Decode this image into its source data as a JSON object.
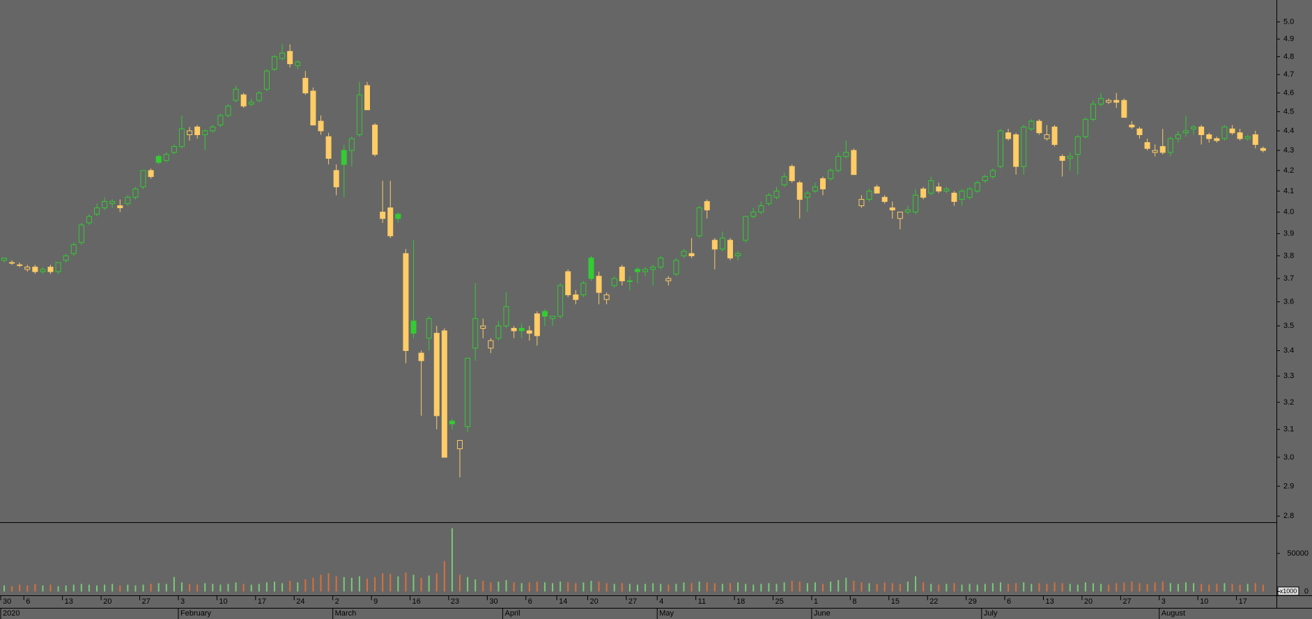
{
  "chart_data": {
    "type": "candlestick",
    "log_scale": true,
    "up_color": "#33cc33",
    "down_color": "#ffcc66",
    "vol_up_color": "#77cc77",
    "vol_down_color": "#d9703c",
    "ylim": [
      2.78,
      5.13
    ],
    "yticks": [
      {
        "value": 2.8,
        "label": "2.8"
      },
      2.9,
      {
        "value": 3.0,
        "label": "3.0"
      },
      3.1,
      3.2,
      3.3,
      3.4,
      3.5,
      3.6,
      3.7,
      3.8,
      3.9,
      {
        "value": 4.0,
        "label": "4.0"
      },
      4.1,
      4.2,
      4.3,
      4.4,
      4.5,
      4.6,
      4.7,
      4.8,
      4.9,
      {
        "value": 5.0,
        "label": "5.0"
      }
    ],
    "vol_ylim": [
      -5000,
      90000
    ],
    "vol_ticks": [
      0,
      50000
    ],
    "volume_unit_label": "x1000",
    "xticks": [
      {
        "value": 0,
        "label": "30"
      },
      {
        "value": 3,
        "label": "6"
      },
      {
        "value": 8,
        "label": "13"
      },
      {
        "value": 13,
        "label": "20"
      },
      {
        "value": 18,
        "label": "27"
      },
      {
        "value": 23,
        "label": "3"
      },
      {
        "value": 28,
        "label": "10"
      },
      {
        "value": 33,
        "label": "17"
      },
      {
        "value": 38,
        "label": "24"
      },
      {
        "value": 43,
        "label": "2"
      },
      {
        "value": 48,
        "label": "9"
      },
      {
        "value": 53,
        "label": "16"
      },
      {
        "value": 58,
        "label": "23"
      },
      {
        "value": 63,
        "label": "30"
      },
      {
        "value": 68,
        "label": "6"
      },
      {
        "value": 72,
        "label": "14"
      },
      {
        "value": 76,
        "label": "20"
      },
      {
        "value": 81,
        "label": "27"
      },
      {
        "value": 85,
        "label": "4"
      },
      {
        "value": 90,
        "label": "11"
      },
      {
        "value": 95,
        "label": "18"
      },
      {
        "value": 100,
        "label": "25"
      },
      {
        "value": 105,
        "label": "1"
      },
      {
        "value": 110,
        "label": "8"
      },
      {
        "value": 115,
        "label": "15"
      },
      {
        "value": 120,
        "label": "22"
      },
      {
        "value": 125,
        "label": "29"
      },
      {
        "value": 130,
        "label": "6"
      },
      {
        "value": 135,
        "label": "13"
      },
      {
        "value": 140,
        "label": "20"
      },
      {
        "value": 145,
        "label": "27"
      },
      {
        "value": 150,
        "label": "3"
      },
      {
        "value": 155,
        "label": "10"
      },
      {
        "value": 160,
        "label": "17"
      }
    ],
    "month_ticks": [
      {
        "value": 0,
        "label": "2020"
      },
      {
        "value": 23,
        "label": "February"
      },
      {
        "value": 43,
        "label": "March"
      },
      {
        "value": 65,
        "label": "April"
      },
      {
        "value": 85,
        "label": "May"
      },
      {
        "value": 105,
        "label": "June"
      },
      {
        "value": 127,
        "label": "July"
      },
      {
        "value": 150,
        "label": "August"
      }
    ],
    "candles": [
      [
        3.78,
        3.79,
        3.77,
        3.79
      ],
      [
        3.77,
        3.78,
        3.76,
        3.77
      ],
      [
        3.76,
        3.77,
        3.75,
        3.76
      ],
      [
        3.74,
        3.76,
        3.73,
        3.75
      ],
      [
        3.75,
        3.76,
        3.72,
        3.73
      ],
      [
        3.73,
        3.75,
        3.72,
        3.74
      ],
      [
        3.75,
        3.76,
        3.72,
        3.73
      ],
      [
        3.73,
        3.77,
        3.72,
        3.77
      ],
      [
        3.78,
        3.81,
        3.77,
        3.8
      ],
      [
        3.81,
        3.86,
        3.8,
        3.85
      ],
      [
        3.86,
        3.95,
        3.85,
        3.94
      ],
      [
        3.95,
        3.99,
        3.94,
        3.98
      ],
      [
        3.99,
        4.04,
        3.98,
        4.02
      ],
      [
        4.02,
        4.07,
        4.01,
        4.05
      ],
      [
        4.04,
        4.06,
        4.02,
        4.05
      ],
      [
        4.03,
        4.06,
        4.0,
        4.02
      ],
      [
        4.04,
        4.08,
        4.03,
        4.07
      ],
      [
        4.07,
        4.12,
        4.06,
        4.11
      ],
      [
        4.12,
        4.2,
        4.11,
        4.2
      ],
      [
        4.2,
        4.21,
        4.16,
        4.17
      ],
      [
        4.27,
        4.28,
        4.23,
        4.24
      ],
      [
        4.25,
        4.29,
        4.24,
        4.28
      ],
      [
        4.29,
        4.33,
        4.28,
        4.32
      ],
      [
        4.32,
        4.48,
        4.31,
        4.41
      ],
      [
        4.38,
        4.42,
        4.35,
        4.4
      ],
      [
        4.42,
        4.43,
        4.36,
        4.38
      ],
      [
        4.38,
        4.41,
        4.3,
        4.4
      ],
      [
        4.4,
        4.43,
        4.39,
        4.42
      ],
      [
        4.43,
        4.49,
        4.42,
        4.48
      ],
      [
        4.48,
        4.54,
        4.47,
        4.53
      ],
      [
        4.56,
        4.64,
        4.55,
        4.62
      ],
      [
        4.59,
        4.6,
        4.52,
        4.53
      ],
      [
        4.54,
        4.57,
        4.53,
        4.55
      ],
      [
        4.56,
        4.61,
        4.55,
        4.6
      ],
      [
        4.62,
        4.73,
        4.61,
        4.72
      ],
      [
        4.73,
        4.81,
        4.72,
        4.8
      ],
      [
        4.79,
        4.87,
        4.78,
        4.82
      ],
      [
        4.83,
        4.87,
        4.74,
        4.76
      ],
      [
        4.75,
        4.78,
        4.73,
        4.77
      ],
      [
        4.68,
        4.72,
        4.59,
        4.6
      ],
      [
        4.61,
        4.63,
        4.43,
        4.43
      ],
      [
        4.45,
        4.48,
        4.38,
        4.4
      ],
      [
        4.37,
        4.39,
        4.23,
        4.26
      ],
      [
        4.2,
        4.23,
        4.08,
        4.12
      ],
      [
        4.3,
        4.33,
        4.07,
        4.23
      ],
      [
        4.3,
        4.37,
        4.22,
        4.36
      ],
      [
        4.38,
        4.66,
        4.37,
        4.59
      ],
      [
        4.64,
        4.66,
        4.51,
        4.51
      ],
      [
        4.43,
        4.44,
        4.27,
        4.28
      ],
      [
        4.0,
        4.15,
        3.95,
        3.97
      ],
      [
        4.02,
        4.15,
        3.88,
        3.89
      ],
      [
        3.99,
        4.0,
        3.95,
        3.97
      ],
      [
        3.81,
        3.83,
        3.35,
        3.4
      ],
      [
        3.52,
        3.87,
        3.45,
        3.47
      ],
      [
        3.39,
        3.4,
        3.15,
        3.36
      ],
      [
        3.45,
        3.54,
        3.4,
        3.53
      ],
      [
        3.47,
        3.5,
        3.1,
        3.15
      ],
      [
        3.48,
        3.49,
        3.0,
        3.0
      ],
      [
        3.13,
        3.14,
        3.1,
        3.12
      ],
      [
        3.03,
        3.06,
        2.93,
        3.06
      ],
      [
        3.11,
        3.37,
        3.09,
        3.37
      ],
      [
        3.41,
        3.68,
        3.36,
        3.53
      ],
      [
        3.49,
        3.53,
        3.45,
        3.5
      ],
      [
        3.41,
        3.45,
        3.39,
        3.44
      ],
      [
        3.45,
        3.52,
        3.44,
        3.5
      ],
      [
        3.5,
        3.64,
        3.49,
        3.58
      ],
      [
        3.49,
        3.5,
        3.45,
        3.48
      ],
      [
        3.49,
        3.51,
        3.45,
        3.48
      ],
      [
        3.48,
        3.5,
        3.44,
        3.47
      ],
      [
        3.55,
        3.56,
        3.42,
        3.46
      ],
      [
        3.56,
        3.57,
        3.5,
        3.54
      ],
      [
        3.53,
        3.54,
        3.5,
        3.54
      ],
      [
        3.54,
        3.68,
        3.53,
        3.67
      ],
      [
        3.73,
        3.74,
        3.62,
        3.63
      ],
      [
        3.63,
        3.65,
        3.59,
        3.61
      ],
      [
        3.63,
        3.69,
        3.62,
        3.68
      ],
      [
        3.79,
        3.8,
        3.69,
        3.7
      ],
      [
        3.71,
        3.73,
        3.59,
        3.64
      ],
      [
        3.61,
        3.64,
        3.59,
        3.63
      ],
      [
        3.67,
        3.71,
        3.66,
        3.7
      ],
      [
        3.75,
        3.76,
        3.67,
        3.69
      ],
      [
        3.69,
        3.71,
        3.65,
        3.69
      ],
      [
        3.74,
        3.75,
        3.68,
        3.73
      ],
      [
        3.73,
        3.75,
        3.71,
        3.74
      ],
      [
        3.74,
        3.76,
        3.67,
        3.75
      ],
      [
        3.75,
        3.8,
        3.74,
        3.79
      ],
      [
        3.69,
        3.71,
        3.67,
        3.7
      ],
      [
        3.72,
        3.79,
        3.71,
        3.78
      ],
      [
        3.8,
        3.83,
        3.79,
        3.82
      ],
      [
        3.81,
        3.88,
        3.79,
        3.8
      ],
      [
        3.89,
        4.03,
        3.88,
        4.02
      ],
      [
        4.05,
        4.06,
        3.97,
        4.01
      ],
      [
        3.87,
        3.88,
        3.74,
        3.83
      ],
      [
        3.83,
        3.91,
        3.82,
        3.88
      ],
      [
        3.87,
        3.88,
        3.78,
        3.79
      ],
      [
        3.8,
        3.82,
        3.78,
        3.81
      ],
      [
        3.87,
        3.98,
        3.86,
        3.98
      ],
      [
        3.98,
        4.02,
        3.97,
        4.0
      ],
      [
        4.0,
        4.05,
        3.99,
        4.03
      ],
      [
        4.04,
        4.09,
        4.03,
        4.08
      ],
      [
        4.07,
        4.12,
        4.06,
        4.1
      ],
      [
        4.13,
        4.19,
        4.12,
        4.17
      ],
      [
        4.22,
        4.23,
        4.14,
        4.15
      ],
      [
        4.14,
        4.15,
        3.97,
        4.06
      ],
      [
        4.07,
        4.1,
        4.0,
        4.09
      ],
      [
        4.1,
        4.14,
        4.09,
        4.12
      ],
      [
        4.16,
        4.17,
        4.08,
        4.11
      ],
      [
        4.16,
        4.21,
        4.15,
        4.2
      ],
      [
        4.2,
        4.29,
        4.19,
        4.27
      ],
      [
        4.27,
        4.35,
        4.26,
        4.29
      ],
      [
        4.3,
        4.31,
        4.18,
        4.18
      ],
      [
        4.03,
        4.08,
        4.02,
        4.06
      ],
      [
        4.06,
        4.11,
        4.05,
        4.1
      ],
      [
        4.12,
        4.13,
        4.09,
        4.09
      ],
      [
        4.07,
        4.08,
        4.04,
        4.05
      ],
      [
        4.02,
        4.05,
        3.97,
        4.01
      ],
      [
        3.97,
        4.0,
        3.92,
        4.0
      ],
      [
        4.0,
        4.03,
        3.99,
        4.01
      ],
      [
        4.0,
        4.11,
        3.99,
        4.08
      ],
      [
        4.11,
        4.12,
        4.06,
        4.07
      ],
      [
        4.09,
        4.17,
        4.08,
        4.15
      ],
      [
        4.12,
        4.14,
        4.09,
        4.1
      ],
      [
        4.1,
        4.12,
        4.09,
        4.11
      ],
      [
        4.09,
        4.1,
        4.03,
        4.05
      ],
      [
        4.06,
        4.11,
        4.03,
        4.1
      ],
      [
        4.07,
        4.12,
        4.06,
        4.11
      ],
      [
        4.1,
        4.15,
        4.09,
        4.14
      ],
      [
        4.15,
        4.18,
        4.14,
        4.17
      ],
      [
        4.17,
        4.21,
        4.16,
        4.2
      ],
      [
        4.22,
        4.41,
        4.21,
        4.4
      ],
      [
        4.39,
        4.41,
        4.35,
        4.36
      ],
      [
        4.38,
        4.39,
        4.18,
        4.22
      ],
      [
        4.22,
        4.43,
        4.18,
        4.42
      ],
      [
        4.41,
        4.46,
        4.4,
        4.45
      ],
      [
        4.45,
        4.46,
        4.38,
        4.39
      ],
      [
        4.36,
        4.43,
        4.35,
        4.38
      ],
      [
        4.42,
        4.43,
        4.32,
        4.33
      ],
      [
        4.27,
        4.28,
        4.17,
        4.25
      ],
      [
        4.26,
        4.29,
        4.2,
        4.27
      ],
      [
        4.28,
        4.38,
        4.18,
        4.37
      ],
      [
        4.37,
        4.47,
        4.36,
        4.46
      ],
      [
        4.46,
        4.56,
        4.45,
        4.54
      ],
      [
        4.54,
        4.6,
        4.53,
        4.57
      ],
      [
        4.55,
        4.57,
        4.54,
        4.56
      ],
      [
        4.56,
        4.6,
        4.52,
        4.55
      ],
      [
        4.56,
        4.57,
        4.47,
        4.47
      ],
      [
        4.43,
        4.45,
        4.41,
        4.42
      ],
      [
        4.41,
        4.42,
        4.36,
        4.38
      ],
      [
        4.34,
        4.36,
        4.3,
        4.31
      ],
      [
        4.29,
        4.33,
        4.27,
        4.3
      ],
      [
        4.32,
        4.41,
        4.28,
        4.29
      ],
      [
        4.29,
        4.37,
        4.27,
        4.36
      ],
      [
        4.36,
        4.4,
        4.34,
        4.38
      ],
      [
        4.39,
        4.48,
        4.37,
        4.4
      ],
      [
        4.41,
        4.43,
        4.38,
        4.42
      ],
      [
        4.42,
        4.43,
        4.33,
        4.38
      ],
      [
        4.38,
        4.39,
        4.34,
        4.36
      ],
      [
        4.36,
        4.37,
        4.34,
        4.35
      ],
      [
        4.36,
        4.43,
        4.35,
        4.42
      ],
      [
        4.41,
        4.43,
        4.38,
        4.39
      ],
      [
        4.39,
        4.41,
        4.35,
        4.36
      ],
      [
        4.36,
        4.38,
        4.35,
        4.37
      ],
      [
        4.38,
        4.4,
        4.31,
        4.33
      ],
      [
        4.31,
        4.32,
        4.29,
        4.3
      ]
    ],
    "volume": [
      8000,
      7000,
      9000,
      8000,
      10000,
      8000,
      9000,
      7000,
      8000,
      9000,
      10000,
      9000,
      8000,
      9000,
      10000,
      8000,
      9000,
      8000,
      9000,
      10000,
      11000,
      10000,
      19000,
      12000,
      10000,
      9000,
      11000,
      10000,
      9000,
      10000,
      12000,
      10000,
      9000,
      10000,
      12000,
      13000,
      11000,
      14000,
      12000,
      16000,
      18000,
      22000,
      24000,
      20000,
      19000,
      18000,
      20000,
      17000,
      19000,
      24000,
      23000,
      20000,
      25000,
      22000,
      18000,
      21000,
      24000,
      40000,
      83000,
      22000,
      19000,
      16000,
      14000,
      12000,
      13000,
      15000,
      12000,
      11000,
      12000,
      13000,
      12000,
      11000,
      13000,
      12000,
      11000,
      12000,
      14000,
      13000,
      11000,
      10000,
      11000,
      10000,
      9000,
      10000,
      11000,
      10000,
      9000,
      10000,
      12000,
      11000,
      13000,
      12000,
      11000,
      10000,
      11000,
      12000,
      10000,
      9000,
      10000,
      11000,
      10000,
      12000,
      14000,
      13000,
      11000,
      12000,
      10000,
      13000,
      15000,
      18000,
      14000,
      12000,
      11000,
      10000,
      12000,
      11000,
      10000,
      13000,
      20000,
      12000,
      10000,
      9000,
      10000,
      11000,
      9000,
      10000,
      9000,
      10000,
      11000,
      12000,
      10000,
      11000,
      12000,
      10000,
      11000,
      10000,
      12000,
      11000,
      10000,
      9000,
      12000,
      11000,
      10000,
      9000,
      11000,
      12000,
      13000,
      11000,
      10000,
      12000,
      13000,
      11000,
      10000,
      12000,
      11000,
      10000,
      9000,
      10000,
      11000,
      10000,
      9000,
      10000,
      11000,
      9000
    ]
  }
}
